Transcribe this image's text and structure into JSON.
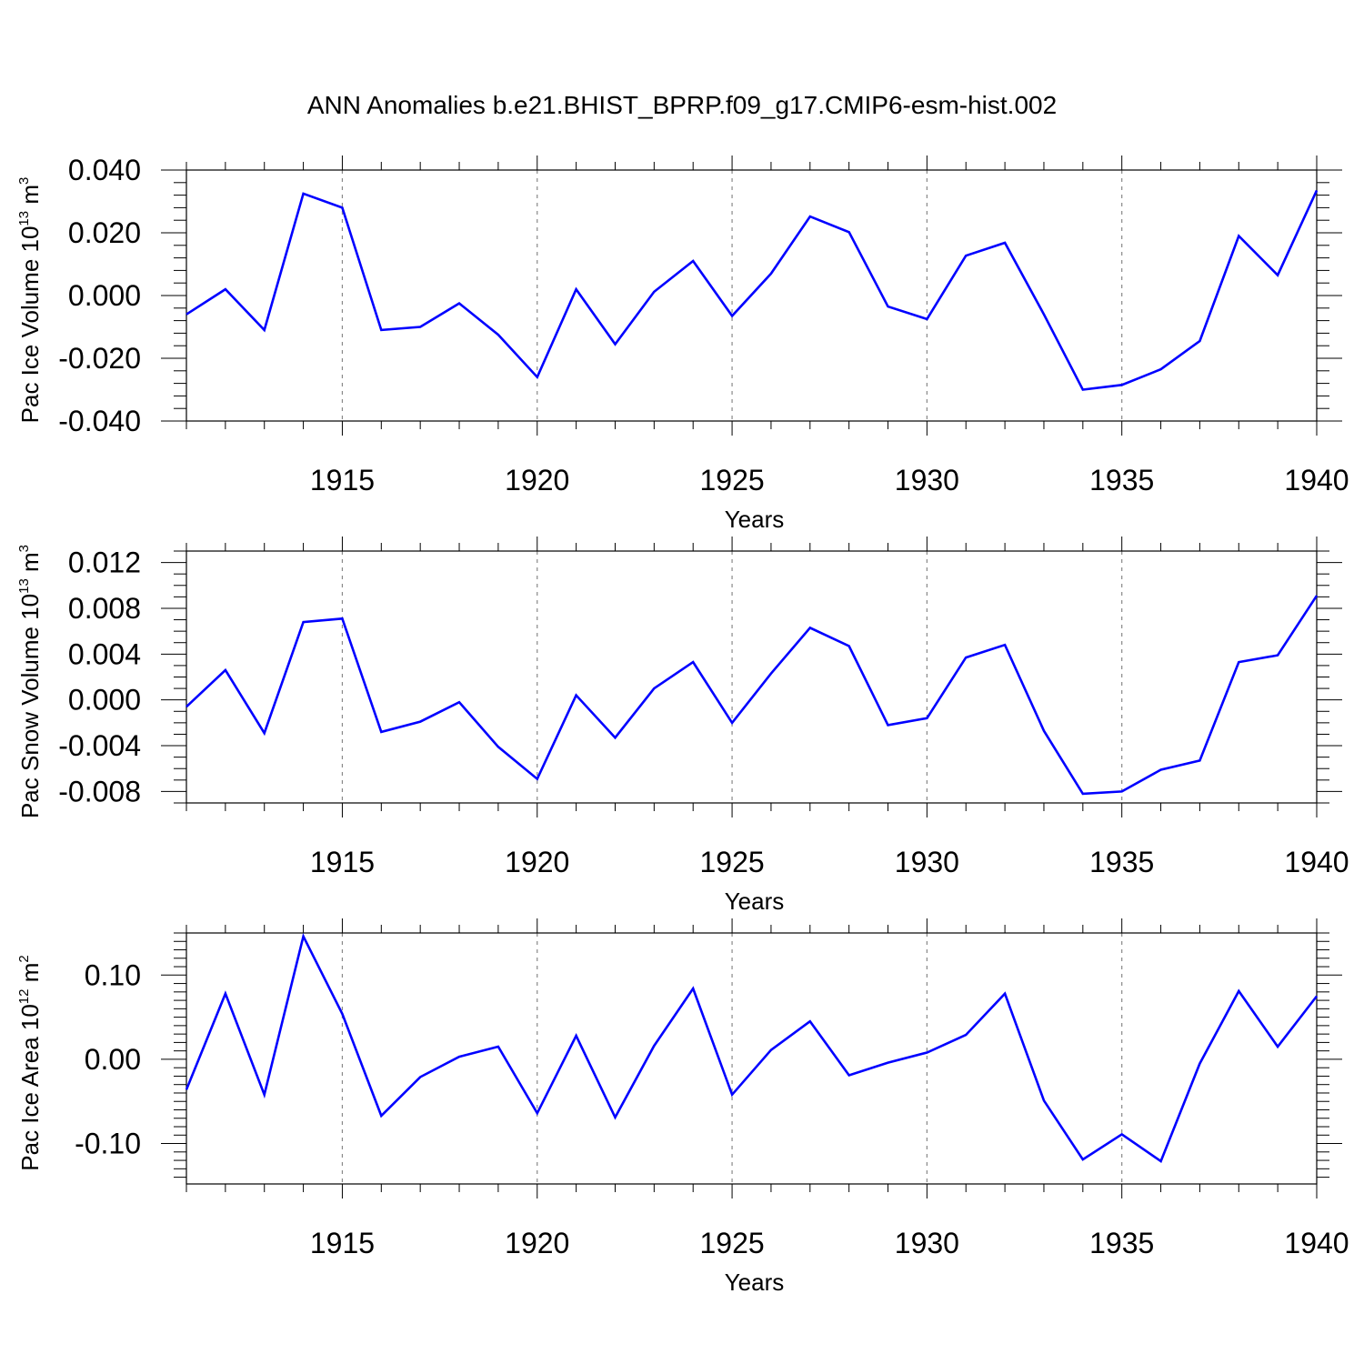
{
  "title": "ANN Anomalies b.e21.BHIST_BPRP.f09_g17.CMIP6-esm-hist.002",
  "colors": {
    "line": "#0000ff",
    "axis": "#000000",
    "grid": "#888888"
  },
  "chart_data": [
    {
      "type": "line",
      "ylabel": {
        "prefix": "Pac Ice Volume 10",
        "exp": "13",
        "unit": " m",
        "unit_exp": "3"
      },
      "xlabel": "Years",
      "xlim": [
        1911,
        1940
      ],
      "ylim": [
        -0.04,
        0.04
      ],
      "xticks": [
        1915,
        1920,
        1925,
        1930,
        1935,
        1940
      ],
      "xtick_labels": [
        "1915",
        "1920",
        "1925",
        "1930",
        "1935",
        "1940"
      ],
      "yticks": [
        -0.04,
        -0.02,
        0.0,
        0.02,
        0.04
      ],
      "ytick_labels": [
        "-0.040",
        "-0.020",
        "0.000",
        "0.020",
        "0.040"
      ],
      "series": [
        {
          "name": "Pac Ice Volume",
          "x": [
            1911,
            1912,
            1913,
            1914,
            1915,
            1916,
            1917,
            1918,
            1919,
            1920,
            1921,
            1922,
            1923,
            1924,
            1925,
            1926,
            1927,
            1928,
            1929,
            1930,
            1931,
            1932,
            1933,
            1934,
            1935,
            1936,
            1937,
            1938,
            1939,
            1940
          ],
          "values": [
            -0.006,
            0.002,
            -0.011,
            0.0325,
            0.028,
            -0.011,
            -0.01,
            -0.0025,
            -0.0125,
            -0.026,
            0.002,
            -0.0155,
            0.0012,
            0.011,
            -0.0065,
            0.007,
            0.0252,
            0.0202,
            -0.0035,
            -0.0075,
            0.0127,
            0.0168,
            -0.006,
            -0.03,
            -0.0285,
            -0.0235,
            -0.0145,
            0.019,
            0.0065,
            0.0335
          ]
        }
      ]
    },
    {
      "type": "line",
      "ylabel": {
        "prefix": "Pac Snow Volume 10",
        "exp": "13",
        "unit": " m",
        "unit_exp": "3"
      },
      "xlabel": "Years",
      "xlim": [
        1911,
        1940
      ],
      "ylim": [
        -0.009,
        0.013
      ],
      "xticks": [
        1915,
        1920,
        1925,
        1930,
        1935,
        1940
      ],
      "xtick_labels": [
        "1915",
        "1920",
        "1925",
        "1930",
        "1935",
        "1940"
      ],
      "yticks": [
        -0.008,
        -0.004,
        0.0,
        0.004,
        0.008,
        0.012
      ],
      "ytick_labels": [
        "-0.008",
        "-0.004",
        "0.000",
        "0.004",
        "0.008",
        "0.012"
      ],
      "series": [
        {
          "name": "Pac Snow Volume",
          "x": [
            1911,
            1912,
            1913,
            1914,
            1915,
            1916,
            1917,
            1918,
            1919,
            1920,
            1921,
            1922,
            1923,
            1924,
            1925,
            1926,
            1927,
            1928,
            1929,
            1930,
            1931,
            1932,
            1933,
            1934,
            1935,
            1936,
            1937,
            1938,
            1939,
            1940
          ],
          "values": [
            -0.0006,
            0.0026,
            -0.0029,
            0.0068,
            0.0071,
            -0.0028,
            -0.0019,
            -0.0002,
            -0.0041,
            -0.0069,
            0.0004,
            -0.0033,
            0.001,
            0.0033,
            -0.002,
            0.0023,
            0.0063,
            0.0047,
            -0.0022,
            -0.0016,
            0.0037,
            0.0048,
            -0.0027,
            -0.0082,
            -0.008,
            -0.0061,
            -0.0053,
            0.0033,
            0.0039,
            0.0091
          ]
        }
      ]
    },
    {
      "type": "line",
      "ylabel": {
        "prefix": "Pac Ice Area 10",
        "exp": "12",
        "unit": " m",
        "unit_exp": "2"
      },
      "xlabel": "Years",
      "xlim": [
        1911,
        1940
      ],
      "ylim": [
        -0.148,
        0.15
      ],
      "xticks": [
        1915,
        1920,
        1925,
        1930,
        1935,
        1940
      ],
      "xtick_labels": [
        "1915",
        "1920",
        "1925",
        "1930",
        "1935",
        "1940"
      ],
      "yticks": [
        -0.1,
        0.0,
        0.1
      ],
      "ytick_labels": [
        "-0.10",
        "0.00",
        "0.10"
      ],
      "series": [
        {
          "name": "Pac Ice Area",
          "x": [
            1911,
            1912,
            1913,
            1914,
            1915,
            1916,
            1917,
            1918,
            1919,
            1920,
            1921,
            1922,
            1923,
            1924,
            1925,
            1926,
            1927,
            1928,
            1929,
            1930,
            1931,
            1932,
            1933,
            1934,
            1935,
            1936,
            1937,
            1938,
            1939,
            1940
          ],
          "values": [
            -0.036,
            0.078,
            -0.042,
            0.146,
            0.054,
            -0.067,
            -0.021,
            0.003,
            0.015,
            -0.064,
            0.028,
            -0.069,
            0.016,
            0.084,
            -0.042,
            0.011,
            0.045,
            -0.019,
            -0.004,
            0.008,
            0.029,
            0.078,
            -0.049,
            -0.119,
            -0.089,
            -0.121,
            -0.005,
            0.081,
            0.015,
            0.075
          ]
        }
      ]
    }
  ]
}
